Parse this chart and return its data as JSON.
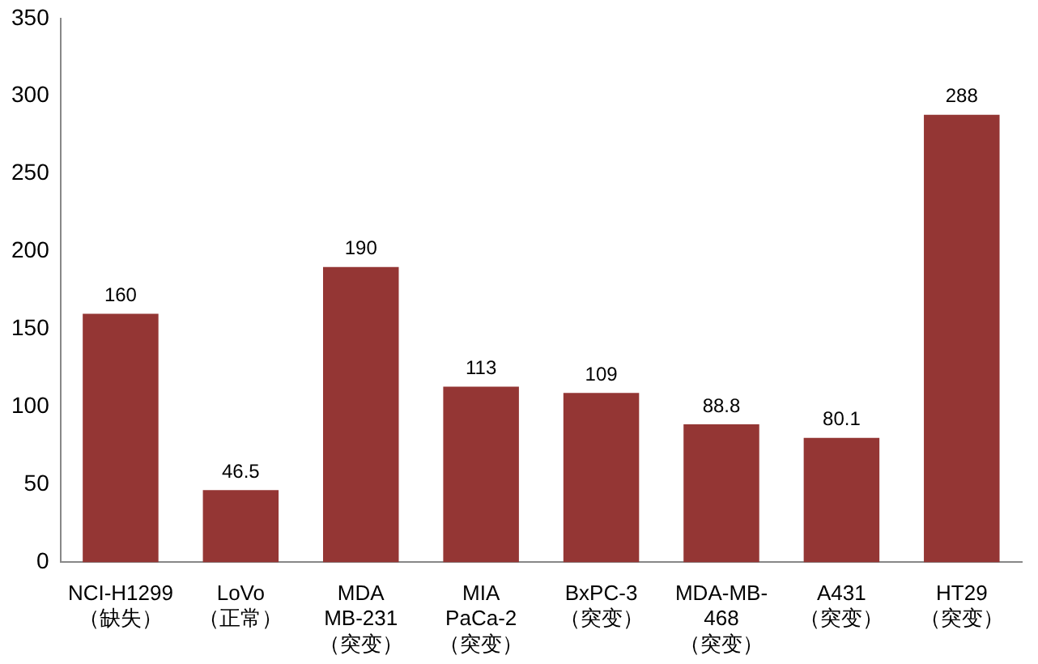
{
  "chart_data": {
    "type": "bar",
    "categories": [
      "NCI-H1299\n（缺失）",
      "LoVo\n（正常）",
      "MDA\nMB-231\n（突变）",
      "MIA\nPaCa-2\n（突变）",
      "BxPC-3\n（突变）",
      "MDA-MB-\n468\n（突变）",
      "A431\n（突变）",
      "HT29\n（突变）"
    ],
    "values": [
      160,
      46.5,
      190,
      113,
      109,
      88.8,
      80.1,
      288
    ],
    "color": "#943634",
    "ylim": [
      0,
      350
    ],
    "yticks": [
      0,
      50,
      100,
      150,
      200,
      250,
      300,
      350
    ],
    "grid": false,
    "data_labels": true
  }
}
